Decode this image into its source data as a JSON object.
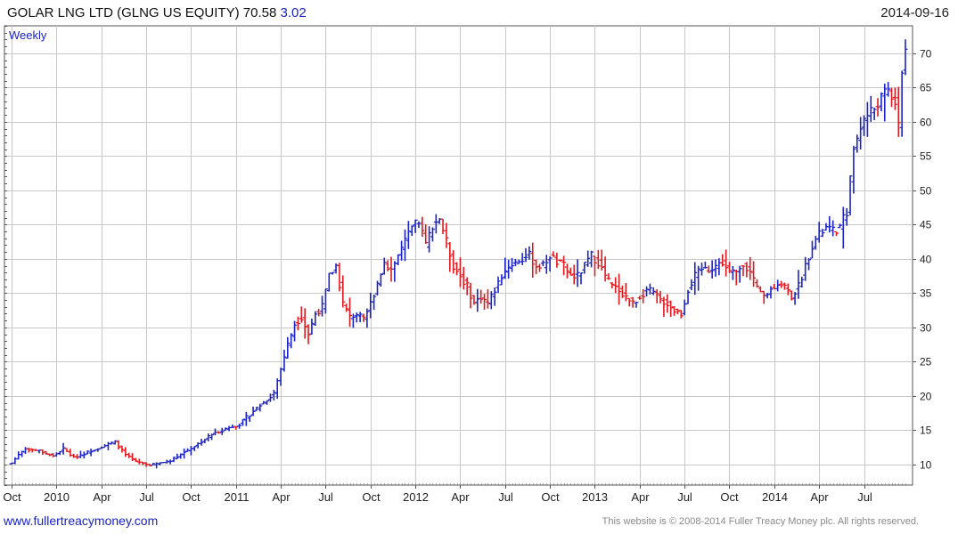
{
  "header": {
    "title": "GOLAR LNG LTD (GLNG US EQUITY) 70.58",
    "change": "3.02",
    "date": "2014-09-16"
  },
  "periodicity_label": "Weekly",
  "footer": {
    "website": "www.fullertreacymoney.com",
    "copyright": "This website is © 2008-2014 Fuller Treacy Money plc. All rights reserved."
  },
  "colors": {
    "up": "#1a22c8",
    "down": "#e0181d",
    "grid": "#c8c8c8",
    "accent": "#1a22c8"
  },
  "chart_data": {
    "type": "line",
    "style": "OHLC bars (weekly)",
    "title": "GOLAR LNG LTD (GLNG US EQUITY) 70.58",
    "xlabel": "",
    "ylabel": "",
    "ylim": [
      7,
      74
    ],
    "y_ticks": [
      10,
      15,
      20,
      25,
      30,
      35,
      40,
      45,
      50,
      55,
      60,
      65,
      70
    ],
    "y_axis_position": "right",
    "grid": true,
    "x_ticks": [
      "Oct",
      "2010",
      "Apr",
      "Jul",
      "Oct",
      "2011",
      "Apr",
      "Jul",
      "Oct",
      "2012",
      "Apr",
      "Jul",
      "Oct",
      "2013",
      "Apr",
      "Jul",
      "Oct",
      "2014",
      "Apr",
      "Jul"
    ],
    "x_tick_weeks": [
      0,
      13,
      26,
      39,
      52,
      65,
      78,
      91,
      104,
      117,
      130,
      143,
      156,
      169,
      182,
      195,
      208,
      221,
      234,
      247
    ],
    "n_weeks": 260,
    "close_anchors": [
      [
        0,
        10.2
      ],
      [
        2,
        11.5
      ],
      [
        4,
        12.3
      ],
      [
        8,
        12.0
      ],
      [
        12,
        11.2
      ],
      [
        15,
        12.3
      ],
      [
        18,
        11.0
      ],
      [
        22,
        11.8
      ],
      [
        26,
        12.6
      ],
      [
        30,
        13.3
      ],
      [
        33,
        11.4
      ],
      [
        36,
        10.4
      ],
      [
        40,
        9.9
      ],
      [
        43,
        10.2
      ],
      [
        46,
        10.6
      ],
      [
        50,
        11.8
      ],
      [
        54,
        13.0
      ],
      [
        58,
        14.4
      ],
      [
        62,
        15.2
      ],
      [
        66,
        15.9
      ],
      [
        70,
        17.8
      ],
      [
        74,
        19.5
      ],
      [
        76,
        20.5
      ],
      [
        78,
        24.0
      ],
      [
        80,
        27.5
      ],
      [
        82,
        30.5
      ],
      [
        84,
        31.5
      ],
      [
        86,
        29.0
      ],
      [
        88,
        32.0
      ],
      [
        90,
        33.0
      ],
      [
        92,
        37.5
      ],
      [
        94,
        39.0
      ],
      [
        96,
        33.5
      ],
      [
        98,
        31.5
      ],
      [
        100,
        32.0
      ],
      [
        102,
        31.0
      ],
      [
        104,
        33.5
      ],
      [
        106,
        36.5
      ],
      [
        108,
        39.5
      ],
      [
        110,
        38.5
      ],
      [
        112,
        40.5
      ],
      [
        114,
        42.5
      ],
      [
        116,
        44.5
      ],
      [
        118,
        45.5
      ],
      [
        120,
        42.0
      ],
      [
        122,
        45.0
      ],
      [
        124,
        46.0
      ],
      [
        126,
        42.5
      ],
      [
        128,
        39.0
      ],
      [
        130,
        37.5
      ],
      [
        132,
        36.0
      ],
      [
        134,
        33.5
      ],
      [
        136,
        34.5
      ],
      [
        138,
        33.5
      ],
      [
        140,
        35.5
      ],
      [
        142,
        37.5
      ],
      [
        144,
        39.0
      ],
      [
        146,
        39.5
      ],
      [
        148,
        40.0
      ],
      [
        150,
        40.5
      ],
      [
        152,
        39.0
      ],
      [
        154,
        39.0
      ],
      [
        156,
        40.5
      ],
      [
        158,
        39.5
      ],
      [
        160,
        39.0
      ],
      [
        162,
        37.5
      ],
      [
        164,
        37.5
      ],
      [
        166,
        39.0
      ],
      [
        168,
        40.5
      ],
      [
        170,
        39.5
      ],
      [
        172,
        37.5
      ],
      [
        174,
        36.0
      ],
      [
        176,
        35.5
      ],
      [
        178,
        34.5
      ],
      [
        180,
        33.5
      ],
      [
        182,
        34.5
      ],
      [
        184,
        35.5
      ],
      [
        186,
        35.0
      ],
      [
        188,
        34.0
      ],
      [
        190,
        33.5
      ],
      [
        192,
        32.5
      ],
      [
        194,
        32.0
      ],
      [
        196,
        35.5
      ],
      [
        198,
        37.5
      ],
      [
        200,
        38.5
      ],
      [
        202,
        38.5
      ],
      [
        204,
        39.0
      ],
      [
        206,
        39.5
      ],
      [
        208,
        38.0
      ],
      [
        210,
        38.0
      ],
      [
        212,
        39.5
      ],
      [
        214,
        38.0
      ],
      [
        216,
        35.5
      ],
      [
        218,
        34.5
      ],
      [
        220,
        35.5
      ],
      [
        222,
        36.5
      ],
      [
        224,
        36.0
      ],
      [
        226,
        34.5
      ],
      [
        228,
        36.0
      ],
      [
        230,
        39.0
      ],
      [
        232,
        42.0
      ],
      [
        234,
        43.5
      ],
      [
        236,
        44.5
      ],
      [
        238,
        44.0
      ],
      [
        240,
        44.5
      ],
      [
        242,
        47.0
      ],
      [
        244,
        56.0
      ],
      [
        246,
        59.5
      ],
      [
        248,
        61.0
      ],
      [
        250,
        62.0
      ],
      [
        252,
        63.5
      ],
      [
        254,
        64.5
      ],
      [
        256,
        63.0
      ],
      [
        257,
        59.0
      ],
      [
        258,
        67.5
      ],
      [
        259,
        70.58
      ]
    ]
  }
}
